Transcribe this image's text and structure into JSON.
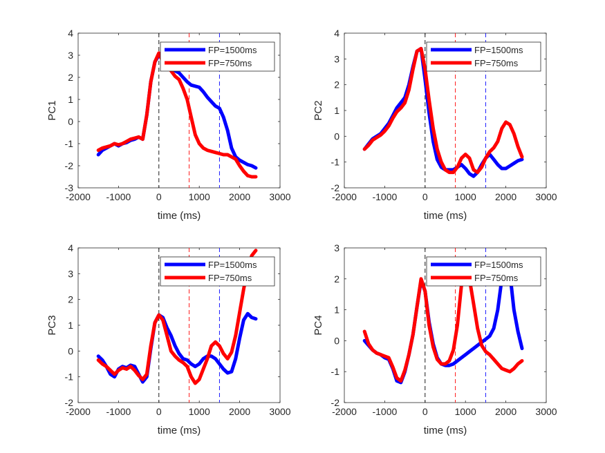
{
  "figure": {
    "background": "#ffffff",
    "axis_color": "#262626"
  },
  "chart_data": [
    {
      "type": "line",
      "title": "",
      "xlabel": "time (ms)",
      "ylabel": "PC1",
      "xlim": [
        -2000,
        3000
      ],
      "ylim": [
        -3,
        4
      ],
      "xticks": [
        -2000,
        -1000,
        0,
        1000,
        2000,
        3000
      ],
      "yticks": [
        -3,
        -2,
        -1,
        0,
        1,
        2,
        3,
        4
      ],
      "grid": false,
      "legend_position": "top-right",
      "vlines": [
        {
          "x": 0,
          "color": "#000000"
        },
        {
          "x": 750,
          "color": "#ff0000"
        },
        {
          "x": 1500,
          "color": "#0000ff"
        }
      ],
      "series": [
        {
          "name": "FP=1500ms",
          "color": "#0000ff",
          "x": [
            -1500,
            -1400,
            -1300,
            -1200,
            -1100,
            -1000,
            -900,
            -800,
            -700,
            -600,
            -500,
            -400,
            -300,
            -200,
            -100,
            0,
            100,
            200,
            300,
            400,
            500,
            600,
            700,
            800,
            900,
            1000,
            1100,
            1200,
            1300,
            1400,
            1500,
            1600,
            1700,
            1800,
            1900,
            2000,
            2100,
            2200,
            2300,
            2400
          ],
          "y": [
            -1.5,
            -1.3,
            -1.2,
            -1.1,
            -1.0,
            -1.1,
            -1.0,
            -0.95,
            -0.85,
            -0.8,
            -0.7,
            -0.8,
            0.3,
            1.8,
            2.7,
            3.0,
            2.8,
            2.6,
            2.5,
            2.3,
            2.2,
            2.0,
            1.8,
            1.65,
            1.6,
            1.55,
            1.35,
            1.1,
            0.9,
            0.7,
            0.6,
            0.2,
            -0.4,
            -1.2,
            -1.6,
            -1.75,
            -1.85,
            -1.95,
            -2.0,
            -2.1
          ]
        },
        {
          "name": "FP=750ms",
          "color": "#ff0000",
          "x": [
            -1500,
            -1400,
            -1300,
            -1200,
            -1100,
            -1000,
            -900,
            -800,
            -700,
            -600,
            -500,
            -400,
            -300,
            -200,
            -100,
            0,
            100,
            200,
            300,
            400,
            500,
            600,
            700,
            800,
            900,
            1000,
            1100,
            1200,
            1300,
            1400,
            1500,
            1600,
            1700,
            1800,
            1900,
            2000,
            2100,
            2200,
            2300,
            2400
          ],
          "y": [
            -1.3,
            -1.2,
            -1.15,
            -1.1,
            -1.0,
            -1.05,
            -1.0,
            -0.9,
            -0.8,
            -0.75,
            -0.7,
            -0.8,
            0.3,
            1.8,
            2.7,
            3.1,
            2.7,
            2.5,
            2.3,
            2.05,
            1.9,
            1.5,
            1.0,
            0.2,
            -0.6,
            -1.0,
            -1.2,
            -1.3,
            -1.35,
            -1.4,
            -1.45,
            -1.5,
            -1.5,
            -1.6,
            -1.7,
            -2.0,
            -2.25,
            -2.45,
            -2.5,
            -2.5
          ]
        }
      ]
    },
    {
      "type": "line",
      "title": "",
      "xlabel": "time (ms)",
      "ylabel": "PC2",
      "xlim": [
        -2000,
        3000
      ],
      "ylim": [
        -2,
        4
      ],
      "xticks": [
        -2000,
        -1000,
        0,
        1000,
        2000,
        3000
      ],
      "yticks": [
        -2,
        -1,
        0,
        1,
        2,
        3,
        4
      ],
      "grid": false,
      "legend_position": "top-right",
      "vlines": [
        {
          "x": 0,
          "color": "#000000"
        },
        {
          "x": 750,
          "color": "#ff0000"
        },
        {
          "x": 1500,
          "color": "#0000ff"
        }
      ],
      "series": [
        {
          "name": "FP=1500ms",
          "color": "#0000ff",
          "x": [
            -1500,
            -1400,
            -1300,
            -1200,
            -1100,
            -1000,
            -900,
            -800,
            -700,
            -600,
            -500,
            -400,
            -300,
            -200,
            -100,
            0,
            100,
            200,
            300,
            400,
            500,
            600,
            700,
            800,
            900,
            1000,
            1100,
            1200,
            1300,
            1400,
            1500,
            1600,
            1700,
            1800,
            1900,
            2000,
            2100,
            2200,
            2300,
            2400
          ],
          "y": [
            -0.5,
            -0.3,
            -0.1,
            0.0,
            0.1,
            0.3,
            0.5,
            0.8,
            1.1,
            1.3,
            1.5,
            2.0,
            2.7,
            3.3,
            3.4,
            2.2,
            0.9,
            -0.2,
            -0.9,
            -1.2,
            -1.3,
            -1.3,
            -1.3,
            -1.2,
            -1.1,
            -1.25,
            -1.45,
            -1.55,
            -1.4,
            -1.1,
            -0.85,
            -0.7,
            -0.9,
            -1.1,
            -1.25,
            -1.25,
            -1.15,
            -1.05,
            -0.95,
            -0.9
          ]
        },
        {
          "name": "FP=750ms",
          "color": "#ff0000",
          "x": [
            -1500,
            -1400,
            -1300,
            -1200,
            -1100,
            -1000,
            -900,
            -800,
            -700,
            -600,
            -500,
            -400,
            -300,
            -200,
            -100,
            0,
            100,
            200,
            300,
            400,
            500,
            600,
            700,
            800,
            900,
            1000,
            1100,
            1200,
            1300,
            1400,
            1500,
            1600,
            1700,
            1800,
            1900,
            2000,
            2100,
            2200,
            2300,
            2400
          ],
          "y": [
            -0.5,
            -0.35,
            -0.15,
            -0.05,
            0.05,
            0.2,
            0.4,
            0.7,
            0.95,
            1.1,
            1.3,
            1.8,
            2.6,
            3.3,
            3.4,
            2.6,
            1.4,
            0.3,
            -0.5,
            -1.0,
            -1.3,
            -1.4,
            -1.4,
            -1.2,
            -0.85,
            -0.7,
            -0.85,
            -1.3,
            -1.4,
            -1.2,
            -0.85,
            -0.6,
            -0.45,
            -0.2,
            0.3,
            0.55,
            0.45,
            0.1,
            -0.4,
            -0.8
          ]
        }
      ]
    },
    {
      "type": "line",
      "title": "",
      "xlabel": "time (ms)",
      "ylabel": "PC3",
      "xlim": [
        -2000,
        3000
      ],
      "ylim": [
        -2,
        4
      ],
      "xticks": [
        -2000,
        -1000,
        0,
        1000,
        2000,
        3000
      ],
      "yticks": [
        -2,
        -1,
        0,
        1,
        2,
        3,
        4
      ],
      "grid": false,
      "legend_position": "top-right",
      "vlines": [
        {
          "x": 0,
          "color": "#000000"
        },
        {
          "x": 750,
          "color": "#ff0000"
        },
        {
          "x": 1500,
          "color": "#0000ff"
        }
      ],
      "series": [
        {
          "name": "FP=1500ms",
          "color": "#0000ff",
          "x": [
            -1500,
            -1400,
            -1300,
            -1200,
            -1100,
            -1000,
            -900,
            -800,
            -700,
            -600,
            -500,
            -400,
            -300,
            -200,
            -100,
            0,
            100,
            200,
            300,
            400,
            500,
            600,
            700,
            800,
            900,
            1000,
            1100,
            1200,
            1300,
            1400,
            1500,
            1600,
            1700,
            1800,
            1900,
            2000,
            2100,
            2200,
            2300,
            2400
          ],
          "y": [
            -0.2,
            -0.35,
            -0.6,
            -0.9,
            -1.0,
            -0.7,
            -0.6,
            -0.65,
            -0.55,
            -0.6,
            -0.9,
            -1.2,
            -1.0,
            0.1,
            1.1,
            1.4,
            1.3,
            0.9,
            0.6,
            0.2,
            -0.1,
            -0.3,
            -0.35,
            -0.5,
            -0.6,
            -0.5,
            -0.3,
            -0.2,
            -0.2,
            -0.3,
            -0.5,
            -0.7,
            -0.85,
            -0.8,
            -0.3,
            0.5,
            1.2,
            1.45,
            1.3,
            1.25
          ]
        },
        {
          "name": "FP=750ms",
          "color": "#ff0000",
          "x": [
            -1500,
            -1400,
            -1300,
            -1200,
            -1100,
            -1000,
            -900,
            -800,
            -700,
            -600,
            -500,
            -400,
            -300,
            -200,
            -100,
            0,
            100,
            200,
            300,
            400,
            500,
            600,
            700,
            800,
            900,
            1000,
            1100,
            1200,
            1300,
            1400,
            1500,
            1600,
            1700,
            1800,
            1900,
            2000,
            2100,
            2200,
            2300,
            2400
          ],
          "y": [
            -0.35,
            -0.5,
            -0.6,
            -0.75,
            -0.9,
            -0.75,
            -0.65,
            -0.7,
            -0.6,
            -0.75,
            -0.95,
            -1.1,
            -0.9,
            0.2,
            1.1,
            1.4,
            1.2,
            0.6,
            0.0,
            -0.2,
            -0.35,
            -0.45,
            -0.6,
            -1.0,
            -1.25,
            -1.1,
            -0.7,
            -0.3,
            0.2,
            0.35,
            0.2,
            -0.1,
            -0.3,
            -0.05,
            0.6,
            1.5,
            2.4,
            3.2,
            3.7,
            3.9
          ]
        }
      ]
    },
    {
      "type": "line",
      "title": "",
      "xlabel": "time (ms)",
      "ylabel": "PC4",
      "xlim": [
        -2000,
        3000
      ],
      "ylim": [
        -2,
        3
      ],
      "xticks": [
        -2000,
        -1000,
        0,
        1000,
        2000,
        3000
      ],
      "yticks": [
        -2,
        -1,
        0,
        1,
        2,
        3
      ],
      "grid": false,
      "legend_position": "top-right",
      "vlines": [
        {
          "x": 0,
          "color": "#000000"
        },
        {
          "x": 750,
          "color": "#ff0000"
        },
        {
          "x": 1500,
          "color": "#0000ff"
        }
      ],
      "series": [
        {
          "name": "FP=1500ms",
          "color": "#0000ff",
          "x": [
            -1500,
            -1400,
            -1300,
            -1200,
            -1100,
            -1000,
            -900,
            -800,
            -700,
            -600,
            -500,
            -400,
            -300,
            -200,
            -100,
            0,
            100,
            200,
            300,
            400,
            500,
            600,
            700,
            800,
            900,
            1000,
            1100,
            1200,
            1300,
            1400,
            1500,
            1600,
            1700,
            1800,
            1900,
            2000,
            2100,
            2200,
            2300,
            2400
          ],
          "y": [
            0.0,
            -0.15,
            -0.3,
            -0.4,
            -0.45,
            -0.55,
            -0.6,
            -0.9,
            -1.3,
            -1.35,
            -1.0,
            -0.45,
            0.2,
            1.1,
            1.95,
            1.6,
            0.6,
            -0.1,
            -0.55,
            -0.75,
            -0.8,
            -0.8,
            -0.75,
            -0.65,
            -0.55,
            -0.45,
            -0.35,
            -0.25,
            -0.15,
            -0.05,
            0.05,
            0.15,
            0.4,
            1.0,
            2.0,
            2.5,
            2.2,
            1.0,
            0.3,
            -0.25
          ]
        },
        {
          "name": "FP=750ms",
          "color": "#ff0000",
          "x": [
            -1500,
            -1400,
            -1300,
            -1200,
            -1100,
            -1000,
            -900,
            -800,
            -700,
            -600,
            -500,
            -400,
            -300,
            -200,
            -100,
            0,
            100,
            200,
            300,
            400,
            500,
            600,
            700,
            800,
            900,
            1000,
            1100,
            1200,
            1300,
            1400,
            1500,
            1600,
            1700,
            1800,
            1900,
            2000,
            2100,
            2200,
            2300,
            2400
          ],
          "y": [
            0.3,
            -0.1,
            -0.3,
            -0.4,
            -0.45,
            -0.5,
            -0.55,
            -0.85,
            -1.2,
            -1.3,
            -0.95,
            -0.45,
            0.2,
            1.1,
            2.0,
            1.6,
            0.5,
            -0.2,
            -0.6,
            -0.75,
            -0.75,
            -0.65,
            -0.3,
            0.5,
            1.8,
            2.3,
            2.0,
            1.2,
            0.4,
            -0.15,
            -0.35,
            -0.45,
            -0.6,
            -0.75,
            -0.9,
            -0.95,
            -1.0,
            -0.9,
            -0.75,
            -0.65
          ]
        }
      ]
    }
  ]
}
